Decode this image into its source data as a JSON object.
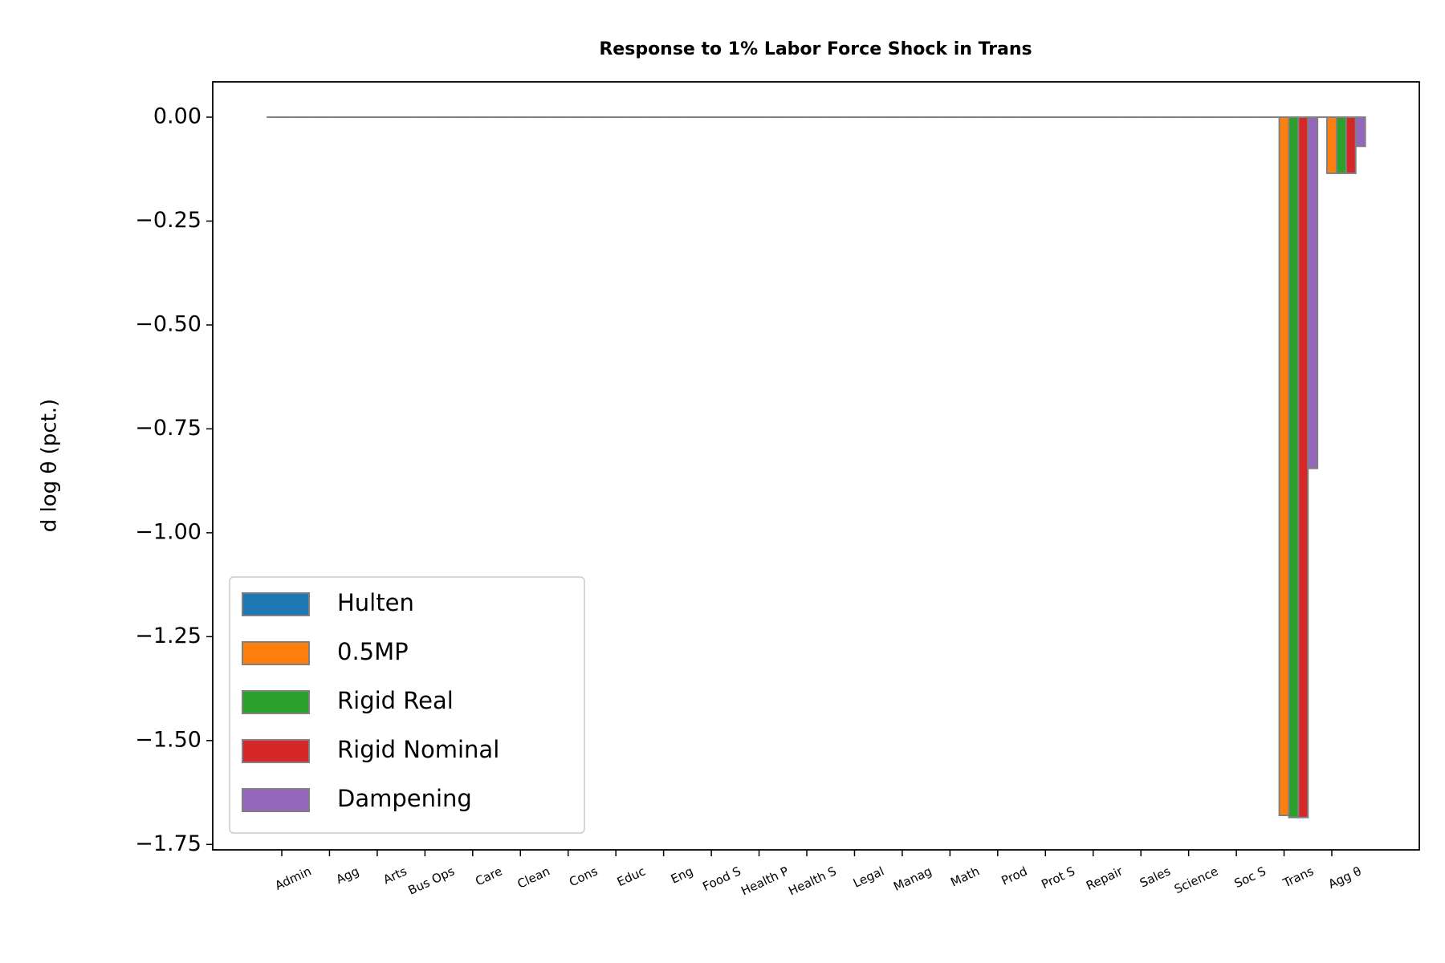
{
  "chart_data": {
    "type": "bar",
    "title": "Response to 1% Labor Force Shock in Trans",
    "ylabel": "d log θ  (pct.)",
    "categories": [
      "Admin",
      "Agg",
      "Arts",
      "Bus Ops",
      "Care",
      "Clean",
      "Cons",
      "Educ",
      "Eng",
      "Food S",
      "Health P",
      "Health S",
      "Legal",
      "Manag",
      "Math",
      "Prod",
      "Prot S",
      "Repair",
      "Sales",
      "Science",
      "Soc S",
      "Trans",
      "Agg θ"
    ],
    "series": [
      {
        "name": "Hulten",
        "color": "#1f77b4",
        "values": [
          0,
          0,
          0,
          0,
          0,
          0,
          0,
          0,
          0,
          0,
          0,
          0,
          0,
          0,
          0,
          0,
          0,
          0,
          0,
          0,
          0,
          0,
          0
        ]
      },
      {
        "name": "0.5MP",
        "color": "#ff7f0e",
        "values": [
          0,
          0,
          0,
          0,
          0,
          0,
          0,
          0,
          0,
          0,
          0,
          0,
          0,
          0,
          0,
          0,
          0,
          0,
          0,
          0,
          0,
          -1.68,
          -0.135
        ]
      },
      {
        "name": "Rigid Real",
        "color": "#2ca02c",
        "values": [
          0,
          0,
          0,
          0,
          0,
          0,
          0,
          0,
          0,
          0,
          0,
          0,
          0,
          0,
          0,
          0,
          0,
          0,
          0,
          0,
          0,
          -1.685,
          -0.135
        ]
      },
      {
        "name": "Rigid Nominal",
        "color": "#d62728",
        "values": [
          0,
          0,
          0,
          0,
          0,
          0,
          0,
          0,
          0,
          0,
          0,
          0,
          0,
          0,
          0,
          0,
          0,
          0,
          0,
          0,
          0,
          -1.685,
          -0.135
        ]
      },
      {
        "name": "Dampening",
        "color": "#9467bd",
        "values": [
          0,
          0,
          0,
          0,
          0,
          0,
          0,
          0,
          0,
          0,
          0,
          0,
          0,
          0,
          0,
          0,
          0,
          0,
          0,
          0,
          0,
          -0.845,
          -0.07
        ]
      }
    ],
    "ylim": [
      -1.763,
      0.085
    ],
    "yticks": [
      {
        "value": 0,
        "label": "0.00"
      },
      {
        "value": -0.25,
        "label": "−0.25"
      },
      {
        "value": -0.5,
        "label": "−0.50"
      },
      {
        "value": -0.75,
        "label": "−0.75"
      },
      {
        "value": -1,
        "label": "−1.00"
      },
      {
        "value": -1.25,
        "label": "−1.25"
      },
      {
        "value": -1.5,
        "label": "−1.50"
      },
      {
        "value": -1.75,
        "label": "−1.75"
      }
    ],
    "legend": "lower left",
    "edgecolor": "#808080"
  }
}
